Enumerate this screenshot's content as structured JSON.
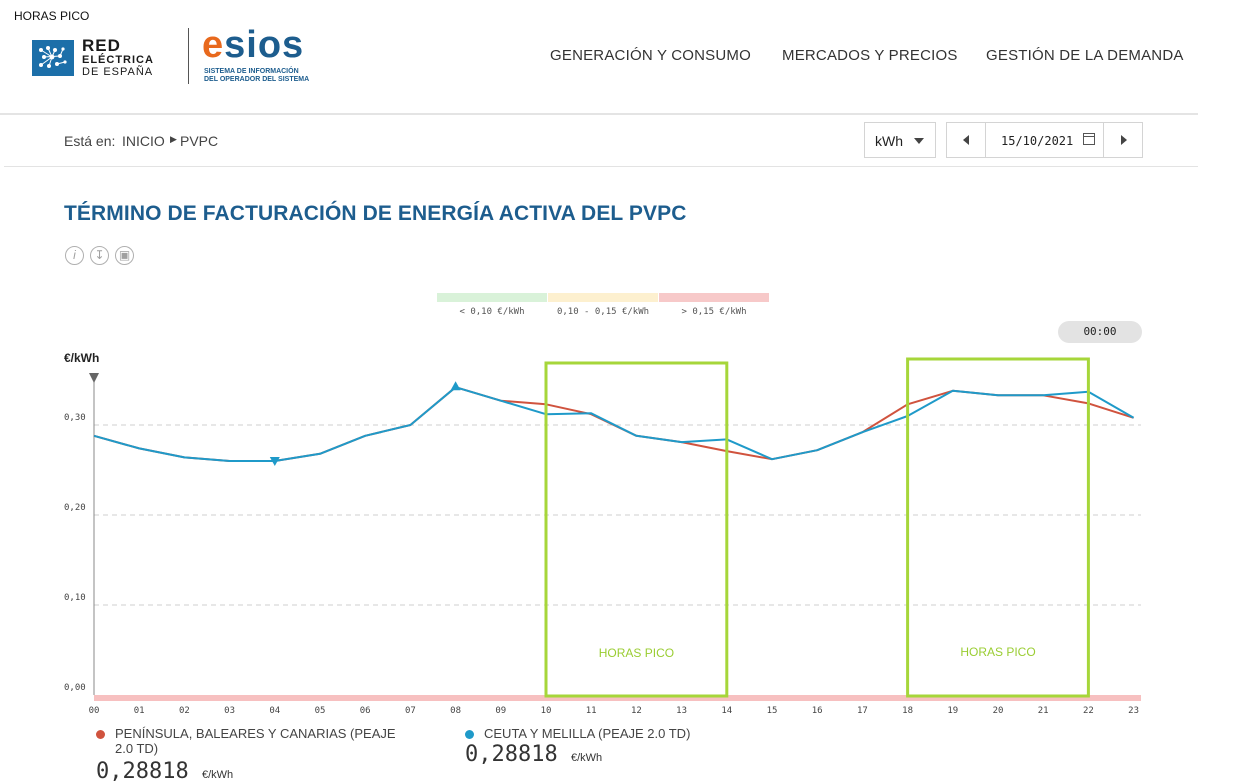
{
  "annotation_top": "HORAS PICO",
  "brand": {
    "ree_line1": "RED",
    "ree_line2": "ELÉCTRICA",
    "ree_line3": "DE ESPAÑA",
    "esios_e": "e",
    "esios_rest": "sios",
    "esios_sub1": "SISTEMA DE INFORMACIÓN",
    "esios_sub2": "DEL OPERADOR DEL SISTEMA"
  },
  "nav": [
    "GENERACIÓN Y CONSUMO",
    "MERCADOS Y PRECIOS",
    "GESTIÓN DE LA DEMANDA"
  ],
  "breadcrumb": {
    "label": "Está en:",
    "home": "INICIO",
    "current": "PVPC"
  },
  "unit_select": "kWh",
  "date": "15/10/2021",
  "title": "TÉRMINO DE FACTURACIÓN DE ENERGÍA ACTIVA DEL PVPC",
  "tools": [
    "info-icon",
    "download-icon",
    "export-icon"
  ],
  "price_bands": [
    {
      "label": "< 0,10 €/kWh",
      "color": "#d9f2d9"
    },
    {
      "label": "0,10 - 0,15 €/kWh",
      "color": "#fdf0cf"
    },
    {
      "label": "> 0,15 €/kWh",
      "color": "#f7c9c9"
    }
  ],
  "time_pill": "00:00",
  "peak_label": "HORAS PICO",
  "chart_data": {
    "type": "line",
    "ylabel": "€/kWh",
    "ylim": [
      0,
      0.3
    ],
    "yticks": [
      "0,00",
      "0,10",
      "0,20",
      "0,30"
    ],
    "categories": [
      "00",
      "01",
      "02",
      "03",
      "04",
      "05",
      "06",
      "07",
      "08",
      "09",
      "10",
      "11",
      "12",
      "13",
      "14",
      "15",
      "16",
      "17",
      "18",
      "19",
      "20",
      "21",
      "22",
      "23"
    ],
    "series": [
      {
        "name": "PENÍNSULA, BALEARES Y CANARIAS (PEAJE 2.0 TD)",
        "color": "#d0533e",
        "values": [
          0.288,
          0.274,
          0.264,
          0.26,
          0.26,
          0.268,
          0.288,
          0.3,
          0.342,
          0.327,
          0.323,
          0.312,
          0.288,
          0.281,
          0.271,
          0.262,
          0.272,
          0.292,
          0.323,
          0.338,
          0.333,
          0.333,
          0.324,
          0.308
        ]
      },
      {
        "name": "CEUTA Y MELILLA (PEAJE 2.0 TD)",
        "color": "#1f9ac9",
        "values": [
          0.288,
          0.274,
          0.264,
          0.26,
          0.26,
          0.268,
          0.288,
          0.3,
          0.342,
          0.327,
          0.312,
          0.313,
          0.288,
          0.281,
          0.284,
          0.262,
          0.272,
          0.292,
          0.31,
          0.338,
          0.333,
          0.333,
          0.337,
          0.308
        ]
      }
    ],
    "max_marker": {
      "index": 8
    },
    "min_marker": {
      "index": 4
    },
    "peak_windows": [
      {
        "from": "10",
        "to": "14"
      },
      {
        "from": "18",
        "to": "22"
      }
    ]
  },
  "legend_values": [
    {
      "value": "0,28818",
      "unit": "€/kWh"
    },
    {
      "value": "0,28818",
      "unit": "€/kWh"
    }
  ]
}
